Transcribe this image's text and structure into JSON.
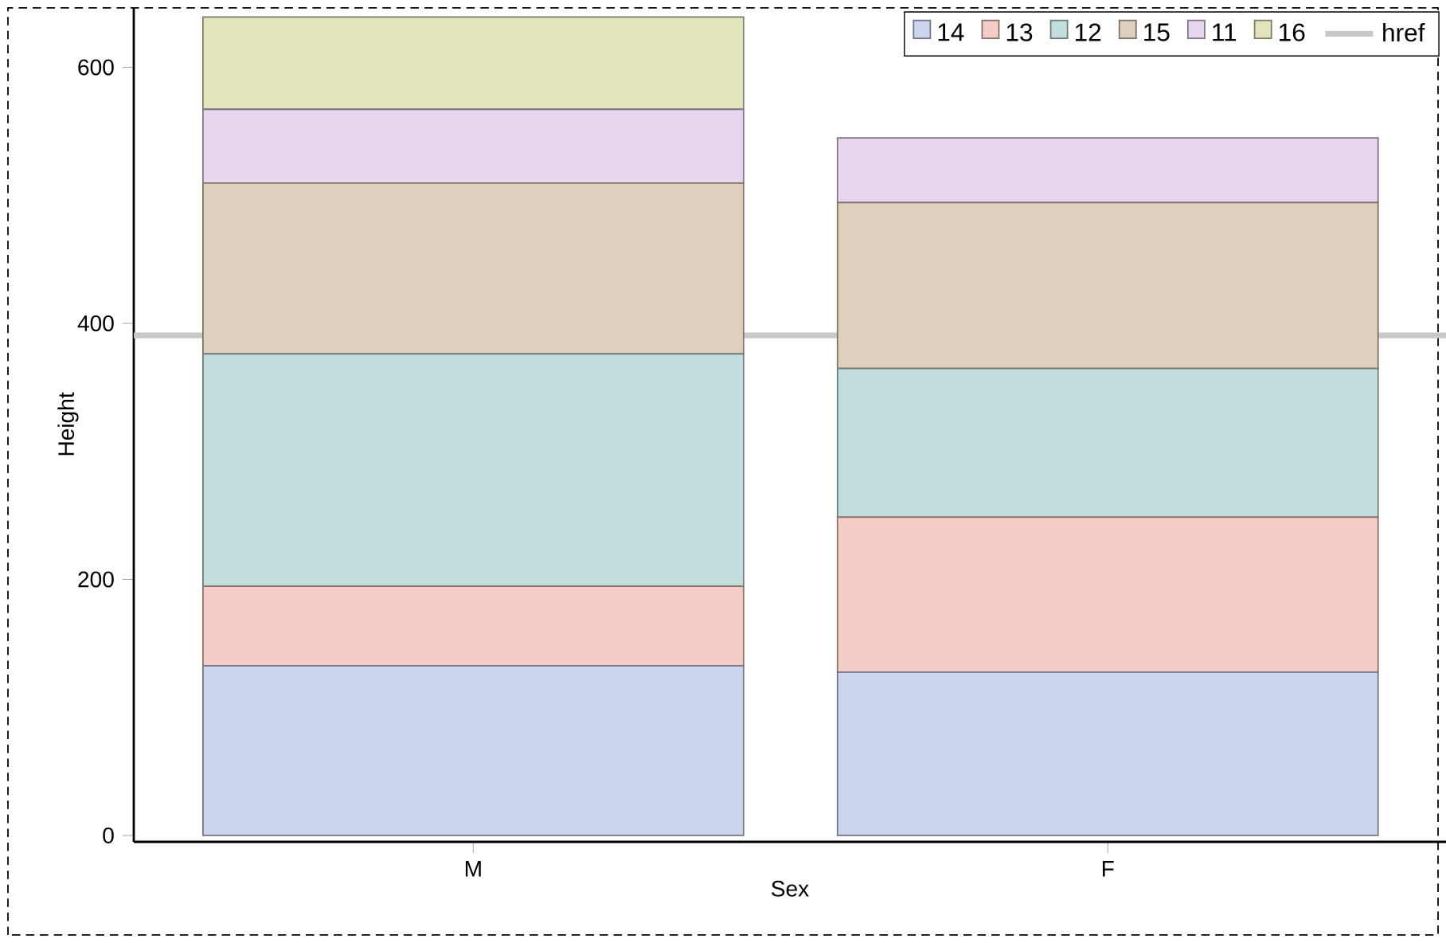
{
  "chart_data": {
    "type": "bar",
    "stacked": true,
    "xlabel": "Sex",
    "ylabel": "Height",
    "categories": [
      "M",
      "F"
    ],
    "series": [
      {
        "name": "14",
        "color": "#cdd4ee",
        "values": [
          132.6,
          127.6
        ]
      },
      {
        "name": "13",
        "color": "#f5cdc6",
        "values": [
          62,
          121
        ]
      },
      {
        "name": "12",
        "color": "#c3dfdd",
        "values": [
          181.6,
          116.1
        ]
      },
      {
        "name": "15",
        "color": "#dfcfbd",
        "values": [
          133.3,
          129.7
        ]
      },
      {
        "name": "11",
        "color": "#e6d6f0",
        "values": [
          57.7,
          50.5
        ]
      },
      {
        "name": "16",
        "color": "#e3e4bb",
        "values": [
          72.1,
          null
        ]
      }
    ],
    "ref_lines": [
      {
        "axis": "y",
        "value": 390.6,
        "label": "href",
        "color": "#c8c8c8"
      }
    ],
    "ylim": [
      -5,
      647
    ],
    "yticks": [
      0,
      200,
      400,
      600
    ],
    "legend": "top right",
    "grid": false
  }
}
